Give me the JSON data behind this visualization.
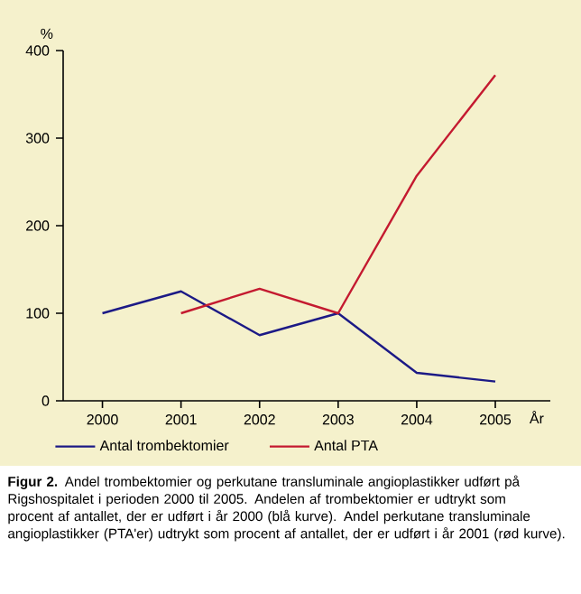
{
  "chart_data": {
    "type": "line",
    "ylabel": "%",
    "xlabel": "År",
    "categories": [
      "2000",
      "2001",
      "2002",
      "2003",
      "2004",
      "2005"
    ],
    "series": [
      {
        "name": "Antal trombektomier",
        "color": "#1c1a86",
        "values": [
          100,
          125,
          75,
          100,
          32,
          22
        ]
      },
      {
        "name": "Antal PTA",
        "color": "#c41a30",
        "values": [
          null,
          100,
          128,
          100,
          257,
          372
        ]
      }
    ],
    "ylim": [
      0,
      400
    ],
    "yticks": [
      0,
      100,
      200,
      300,
      400
    ],
    "grid": false,
    "legend": "bottom",
    "marker": "none",
    "line_style": "solid",
    "annotations": [
      "**Figur 2.** Andel trombektomier og perkutane transluminale angioplastikker udført på Rigshospitalet i perioden 2000 til 2005. Andelen af trombektomier er udtrykt som procent af antallet, der er udført i år 2000 (blå kurve). Andel perkutane transluminale angioplastikker (PTA'er) udtrykt som procent af antallet, der er udført i år 2001 (rød kurve)."
    ]
  }
}
